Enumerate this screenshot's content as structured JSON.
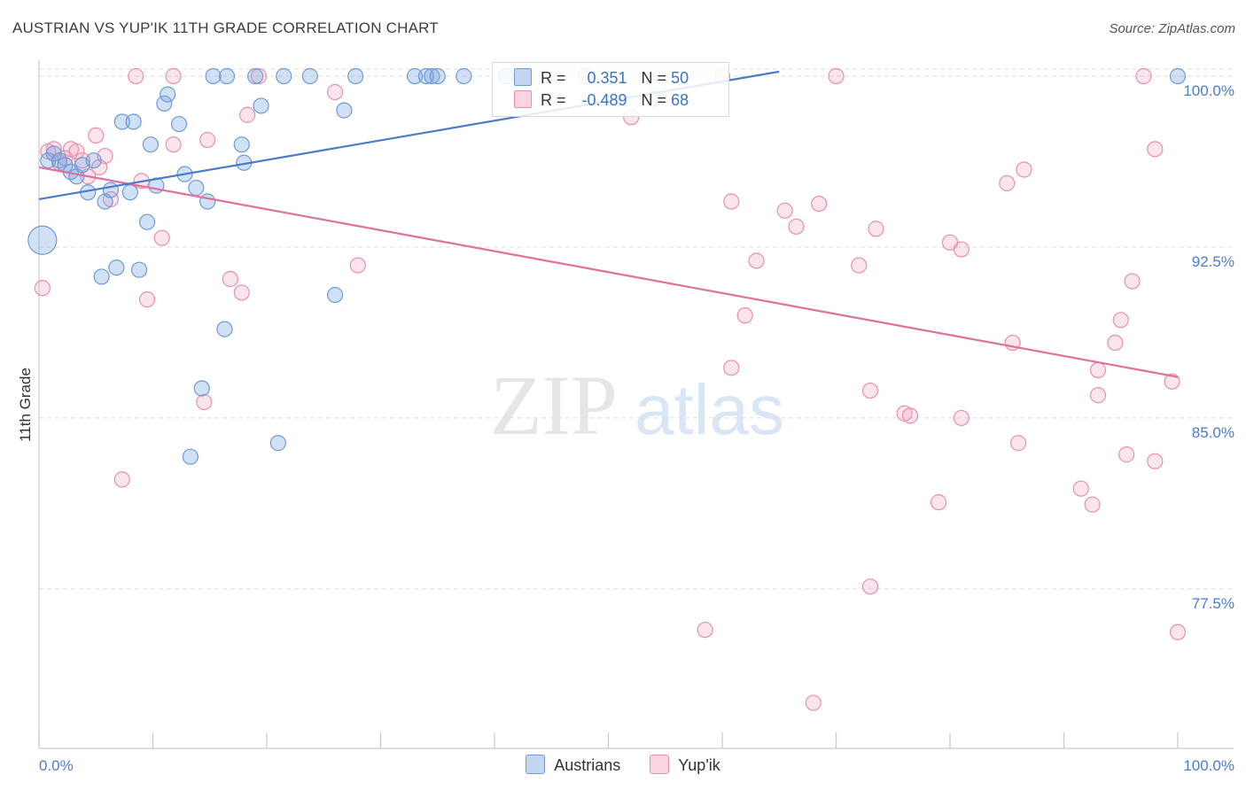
{
  "title": "AUSTRIAN VS YUP'IK 11TH GRADE CORRELATION CHART",
  "source": "Source: ZipAtlas.com",
  "watermark": {
    "zip": "ZIP",
    "atlas": "atlas"
  },
  "colors": {
    "austrians": "#4a7cc9",
    "yupik": "#e0709a",
    "tick": "#4a7cc9"
  },
  "legend": {
    "rows": [
      {
        "series": "austrians",
        "r_label": "R =",
        "r_value": "0.351",
        "n_label": "N =",
        "n_value": "50"
      },
      {
        "series": "yupik",
        "r_label": "R =",
        "r_value": "-0.489",
        "n_label": "N =",
        "n_value": "68"
      }
    ],
    "bottom": [
      "Austrians",
      "Yup'ik"
    ]
  },
  "chart_data": {
    "type": "scatter",
    "title": "AUSTRIAN VS YUP'IK 11TH GRADE CORRELATION CHART",
    "xlabel": "",
    "ylabel": "11th Grade",
    "xlim": [
      0,
      100
    ],
    "ylim": [
      70.5,
      100.7
    ],
    "x_tick_labels": [
      "0.0%",
      "100.0%"
    ],
    "y_ticks": [
      77.5,
      85.0,
      92.5,
      100.0
    ],
    "y_tick_labels": [
      "77.5%",
      "85.0%",
      "92.5%",
      "100.0%"
    ],
    "grid": true,
    "series": [
      {
        "name": "Austrians",
        "r": 0.351,
        "n": 50,
        "trend": {
          "x": [
            0,
            65
          ],
          "y": [
            94.6,
            100.2
          ]
        },
        "points": [
          {
            "x": 0.3,
            "y": 92.8,
            "big": true
          },
          {
            "x": 0.8,
            "y": 96.3
          },
          {
            "x": 1.3,
            "y": 96.6
          },
          {
            "x": 1.8,
            "y": 96.3
          },
          {
            "x": 2.3,
            "y": 96.1
          },
          {
            "x": 2.8,
            "y": 95.8
          },
          {
            "x": 3.3,
            "y": 95.6
          },
          {
            "x": 3.8,
            "y": 96.1
          },
          {
            "x": 4.3,
            "y": 94.9
          },
          {
            "x": 4.8,
            "y": 96.3
          },
          {
            "x": 5.8,
            "y": 94.5
          },
          {
            "x": 6.3,
            "y": 95.0
          },
          {
            "x": 7.3,
            "y": 98.0
          },
          {
            "x": 8.0,
            "y": 94.9
          },
          {
            "x": 8.3,
            "y": 98.0
          },
          {
            "x": 9.5,
            "y": 93.6
          },
          {
            "x": 9.8,
            "y": 97.0
          },
          {
            "x": 10.3,
            "y": 95.2
          },
          {
            "x": 11.0,
            "y": 98.8
          },
          {
            "x": 11.3,
            "y": 99.2
          },
          {
            "x": 12.3,
            "y": 97.9
          },
          {
            "x": 12.8,
            "y": 95.7
          },
          {
            "x": 13.8,
            "y": 95.1
          },
          {
            "x": 14.8,
            "y": 94.5
          },
          {
            "x": 15.3,
            "y": 100.0
          },
          {
            "x": 16.5,
            "y": 100.0
          },
          {
            "x": 17.8,
            "y": 97.0
          },
          {
            "x": 18.0,
            "y": 96.2
          },
          {
            "x": 19.0,
            "y": 100.0
          },
          {
            "x": 19.5,
            "y": 98.7
          },
          {
            "x": 21.5,
            "y": 100.0
          },
          {
            "x": 23.8,
            "y": 100.0
          },
          {
            "x": 26.8,
            "y": 98.5
          },
          {
            "x": 27.8,
            "y": 100.0
          },
          {
            "x": 33.0,
            "y": 100.0
          },
          {
            "x": 34.0,
            "y": 100.0
          },
          {
            "x": 34.5,
            "y": 100.0
          },
          {
            "x": 35.0,
            "y": 100.0
          },
          {
            "x": 37.3,
            "y": 100.0
          },
          {
            "x": 41.0,
            "y": 100.0
          },
          {
            "x": 54.0,
            "y": 99.0
          },
          {
            "x": 100.0,
            "y": 100.0
          },
          {
            "x": 5.5,
            "y": 91.2
          },
          {
            "x": 6.8,
            "y": 91.6
          },
          {
            "x": 8.8,
            "y": 91.5
          },
          {
            "x": 16.3,
            "y": 88.9
          },
          {
            "x": 26.0,
            "y": 90.4
          },
          {
            "x": 14.3,
            "y": 86.3
          },
          {
            "x": 13.3,
            "y": 83.3
          },
          {
            "x": 21.0,
            "y": 83.9
          }
        ]
      },
      {
        "name": "Yup'ik",
        "r": -0.489,
        "n": 68,
        "trend": {
          "x": [
            0,
            100
          ],
          "y": [
            96.0,
            86.8
          ]
        },
        "points": [
          {
            "x": 0.3,
            "y": 90.7
          },
          {
            "x": 0.8,
            "y": 96.7
          },
          {
            "x": 1.3,
            "y": 96.8
          },
          {
            "x": 1.8,
            "y": 96.2
          },
          {
            "x": 2.3,
            "y": 96.4
          },
          {
            "x": 2.8,
            "y": 96.8
          },
          {
            "x": 3.3,
            "y": 96.7
          },
          {
            "x": 3.8,
            "y": 96.3
          },
          {
            "x": 4.3,
            "y": 95.6
          },
          {
            "x": 5.3,
            "y": 96.0
          },
          {
            "x": 5.0,
            "y": 97.4
          },
          {
            "x": 5.8,
            "y": 96.5
          },
          {
            "x": 6.3,
            "y": 94.6
          },
          {
            "x": 7.3,
            "y": 82.3
          },
          {
            "x": 8.5,
            "y": 100.0
          },
          {
            "x": 9.0,
            "y": 95.4
          },
          {
            "x": 9.5,
            "y": 90.2
          },
          {
            "x": 10.8,
            "y": 92.9
          },
          {
            "x": 11.8,
            "y": 97.0
          },
          {
            "x": 11.8,
            "y": 100.0
          },
          {
            "x": 14.8,
            "y": 97.2
          },
          {
            "x": 14.5,
            "y": 85.7
          },
          {
            "x": 16.8,
            "y": 91.1
          },
          {
            "x": 17.8,
            "y": 90.5
          },
          {
            "x": 18.3,
            "y": 98.3
          },
          {
            "x": 19.3,
            "y": 100.0
          },
          {
            "x": 26.0,
            "y": 99.3
          },
          {
            "x": 28.0,
            "y": 91.7
          },
          {
            "x": 48.0,
            "y": 100.0
          },
          {
            "x": 52.0,
            "y": 98.2
          },
          {
            "x": 58.5,
            "y": 75.7
          },
          {
            "x": 60.0,
            "y": 100.0
          },
          {
            "x": 60.8,
            "y": 87.2
          },
          {
            "x": 60.8,
            "y": 94.5
          },
          {
            "x": 62.0,
            "y": 89.5
          },
          {
            "x": 63.0,
            "y": 91.9
          },
          {
            "x": 65.5,
            "y": 94.1
          },
          {
            "x": 66.5,
            "y": 93.4
          },
          {
            "x": 68.0,
            "y": 72.5
          },
          {
            "x": 68.5,
            "y": 94.4
          },
          {
            "x": 70.0,
            "y": 100.0
          },
          {
            "x": 72.0,
            "y": 91.7
          },
          {
            "x": 73.0,
            "y": 86.2
          },
          {
            "x": 73.0,
            "y": 77.6
          },
          {
            "x": 73.5,
            "y": 93.3
          },
          {
            "x": 76.0,
            "y": 85.2
          },
          {
            "x": 76.5,
            "y": 85.1
          },
          {
            "x": 79.0,
            "y": 81.3
          },
          {
            "x": 80.0,
            "y": 92.7
          },
          {
            "x": 81.0,
            "y": 85.0
          },
          {
            "x": 81.0,
            "y": 92.4
          },
          {
            "x": 85.0,
            "y": 95.3
          },
          {
            "x": 85.5,
            "y": 88.3
          },
          {
            "x": 86.0,
            "y": 83.9
          },
          {
            "x": 86.5,
            "y": 95.9
          },
          {
            "x": 91.5,
            "y": 81.9
          },
          {
            "x": 92.5,
            "y": 81.2
          },
          {
            "x": 93.0,
            "y": 86.0
          },
          {
            "x": 93.0,
            "y": 87.1
          },
          {
            "x": 94.5,
            "y": 88.3
          },
          {
            "x": 95.0,
            "y": 89.3
          },
          {
            "x": 95.5,
            "y": 83.4
          },
          {
            "x": 96.0,
            "y": 91.0
          },
          {
            "x": 97.0,
            "y": 100.0
          },
          {
            "x": 98.0,
            "y": 83.1
          },
          {
            "x": 98.0,
            "y": 96.8
          },
          {
            "x": 99.5,
            "y": 86.6
          },
          {
            "x": 100.0,
            "y": 75.6
          }
        ]
      }
    ]
  }
}
